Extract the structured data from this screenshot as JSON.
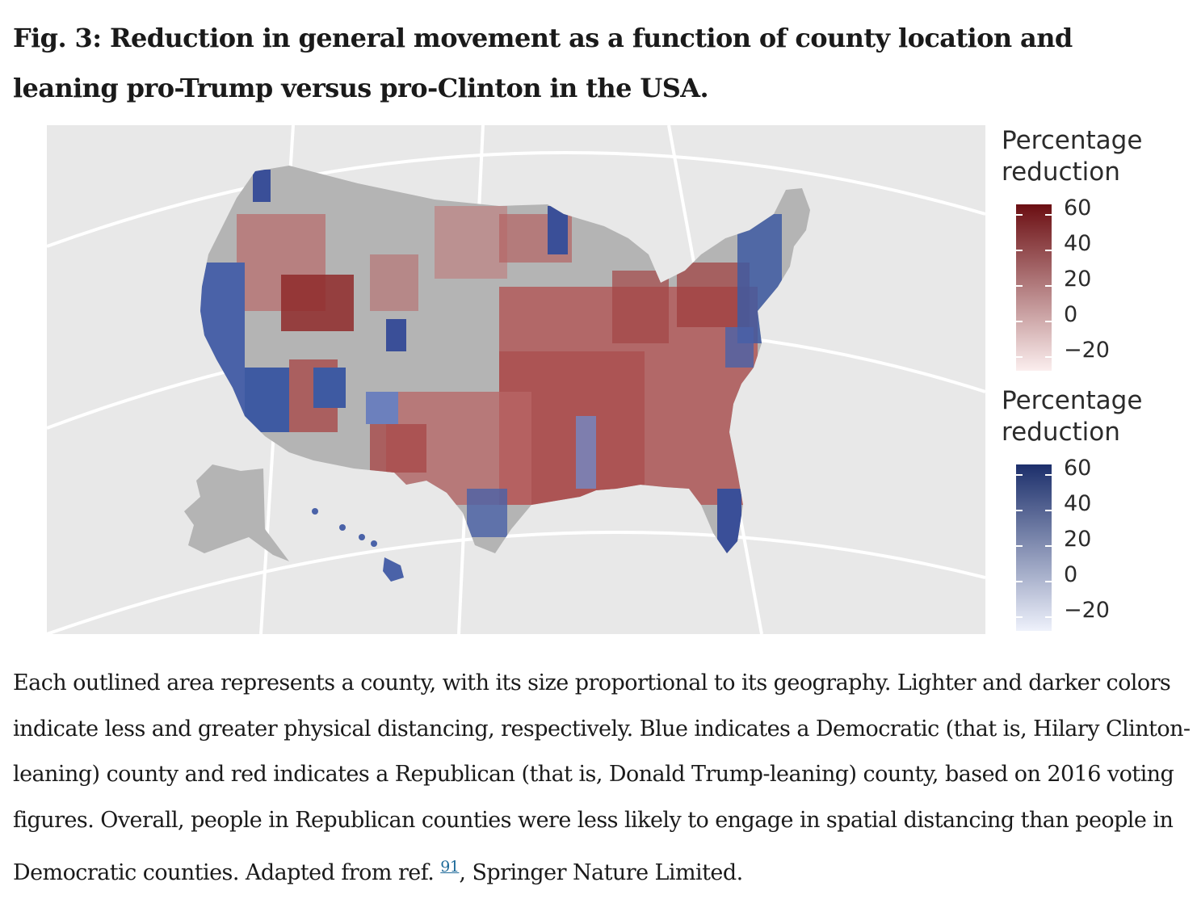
{
  "figure": {
    "title": "Fig. 3: Reduction in general movement as a function of county location and leaning pro-Trump versus pro-Clinton in the USA."
  },
  "legend_republican": {
    "title": "Percentage reduction",
    "ticks": [
      "60",
      "40",
      "20",
      "0",
      "−20"
    ],
    "color_dark": "#6b0e12",
    "color_light": "#fbeeee"
  },
  "legend_democratic": {
    "title": "Percentage reduction",
    "ticks": [
      "60",
      "40",
      "20",
      "0",
      "−20"
    ],
    "color_dark": "#1c2f6b",
    "color_light": "#eef1fb"
  },
  "map_colors": {
    "background": "#e8e8e8",
    "no_data": "#b4b4b4",
    "graticule": "#ffffff"
  },
  "caption": {
    "text_before_ref": "Each outlined area represents a county, with its size proportional to its geography. Lighter and darker colors indicate less and greater physical distancing, respectively. Blue indicates a Democratic (that is, Hilary Clinton-leaning) county and red indicates a Republican (that is, Donald Trump-leaning) county, based on 2016 voting figures. Overall, people in Republican counties were less likely to engage in spatial distancing than people in Democratic counties. Adapted from ref.",
    "ref_number": "91",
    "text_after_ref": ", Springer Nature Limited."
  }
}
